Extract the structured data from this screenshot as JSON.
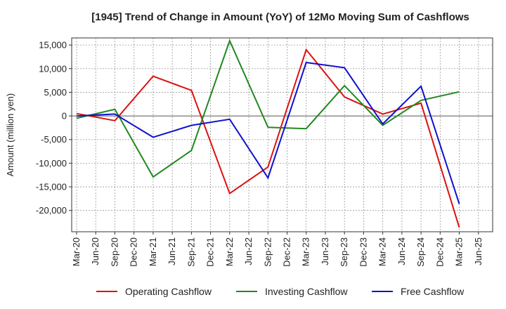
{
  "chart_data": {
    "type": "line",
    "title": "[1945]  Trend of Change in Amount (YoY) of 12Mo Moving Sum of Cashflows",
    "xlabel": "",
    "ylabel": "Amount (million yen)",
    "ylim": [
      -24500,
      16500
    ],
    "y_ticks": [
      15000,
      10000,
      5000,
      0,
      -5000,
      -10000,
      -15000,
      -20000
    ],
    "y_tick_labels": [
      "15,000",
      "10,000",
      "5,000",
      "0",
      "-5,000",
      "-10,000",
      "-15,000",
      "-20,000"
    ],
    "x_tick_labels": [
      "Mar-20",
      "Jun-20",
      "Sep-20",
      "Dec-20",
      "Mar-21",
      "Jun-21",
      "Sep-21",
      "Dec-21",
      "Mar-22",
      "Jun-22",
      "Sep-22",
      "Dec-22",
      "Mar-23",
      "Jun-23",
      "Sep-23",
      "Dec-23",
      "Mar-24",
      "Jun-24",
      "Sep-24",
      "Dec-24",
      "Mar-25",
      "Jun-25"
    ],
    "grid": true,
    "legend_position": "bottom",
    "series": [
      {
        "name": "Operating Cashflow",
        "color": "#dd1111",
        "points": [
          [
            0,
            500
          ],
          [
            2,
            -1000
          ],
          [
            4,
            8400
          ],
          [
            6,
            5400
          ],
          [
            8,
            -16400
          ],
          [
            10,
            -10800
          ],
          [
            12,
            14000
          ],
          [
            14,
            4000
          ],
          [
            16,
            400
          ],
          [
            18,
            2700
          ],
          [
            20,
            -23600
          ]
        ]
      },
      {
        "name": "Investing Cashflow",
        "color": "#228822",
        "points": [
          [
            0,
            -500
          ],
          [
            2,
            1400
          ],
          [
            4,
            -12900
          ],
          [
            6,
            -7300
          ],
          [
            8,
            15900
          ],
          [
            10,
            -2400
          ],
          [
            12,
            -2700
          ],
          [
            14,
            6400
          ],
          [
            16,
            -2000
          ],
          [
            18,
            3300
          ],
          [
            19,
            4200
          ],
          [
            20,
            5100
          ]
        ]
      },
      {
        "name": "Free Cashflow",
        "color": "#1111cc",
        "points": [
          [
            0,
            0
          ],
          [
            2,
            400
          ],
          [
            4,
            -4500
          ],
          [
            6,
            -2000
          ],
          [
            8,
            -700
          ],
          [
            10,
            -13100
          ],
          [
            12,
            11300
          ],
          [
            14,
            10200
          ],
          [
            16,
            -1700
          ],
          [
            18,
            6300
          ],
          [
            20,
            -18600
          ]
        ]
      }
    ]
  }
}
